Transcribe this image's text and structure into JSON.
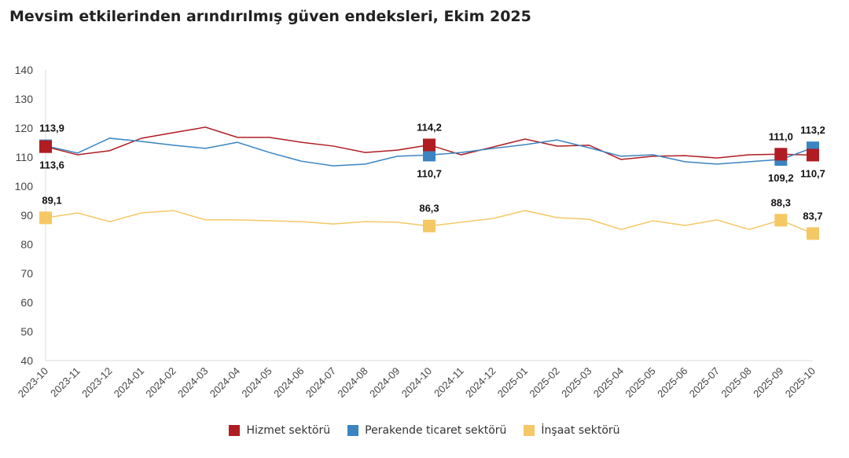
{
  "chart_data": {
    "type": "line",
    "title": "Mevsim etkilerinden arındırılmış güven endeksleri, Ekim 2025",
    "xlabel": "",
    "ylabel": "",
    "ylim": [
      40,
      140
    ],
    "yticks": [
      40,
      50,
      60,
      70,
      80,
      90,
      100,
      110,
      120,
      130,
      140
    ],
    "grid": false,
    "legend": "bottom",
    "categories": [
      "2023-10",
      "2023-11",
      "2023-12",
      "2024-01",
      "2024-02",
      "2024-03",
      "2024-04",
      "2024-05",
      "2024-06",
      "2024-07",
      "2024-08",
      "2024-09",
      "2024-10",
      "2024-11",
      "2024-12",
      "2025-01",
      "2025-02",
      "2025-03",
      "2025-04",
      "2025-05",
      "2025-06",
      "2025-07",
      "2025-08",
      "2025-09",
      "2025-10"
    ],
    "series": [
      {
        "name": "Hizmet sektörü",
        "color": "#b01c22",
        "values": [
          113.6,
          110.8,
          112.2,
          116.5,
          118.4,
          120.3,
          116.8,
          116.8,
          115.1,
          113.8,
          111.6,
          112.4,
          114.2,
          110.8,
          113.5,
          116.2,
          113.8,
          114.1,
          109.2,
          110.3,
          110.5,
          109.7,
          110.8,
          111.0,
          110.7
        ],
        "labels": [
          {
            "i": 0,
            "text": "113,6",
            "pos": "below"
          },
          {
            "i": 12,
            "text": "114,2",
            "pos": "above"
          },
          {
            "i": 23,
            "text": "111,0",
            "pos": "above"
          },
          {
            "i": 24,
            "text": "110,7",
            "pos": "below"
          }
        ]
      },
      {
        "name": "Perakende ticaret sektörü",
        "color": "#3a84c1",
        "values": [
          113.9,
          111.4,
          116.5,
          115.4,
          114.1,
          113.0,
          115.1,
          111.6,
          108.6,
          107.0,
          107.6,
          110.3,
          110.7,
          111.6,
          113.0,
          114.3,
          115.9,
          113.2,
          110.3,
          110.8,
          108.4,
          107.6,
          108.4,
          109.2,
          113.2
        ],
        "labels": [
          {
            "i": 0,
            "text": "113,9",
            "pos": "above"
          },
          {
            "i": 12,
            "text": "110,7",
            "pos": "below"
          },
          {
            "i": 23,
            "text": "109,2",
            "pos": "below"
          },
          {
            "i": 24,
            "text": "113,2",
            "pos": "above"
          }
        ]
      },
      {
        "name": "İnşaat sektörü",
        "color": "#f5c866",
        "values": [
          89.1,
          90.8,
          87.8,
          90.8,
          91.6,
          88.4,
          88.4,
          88.1,
          87.8,
          87.0,
          87.8,
          87.6,
          86.3,
          87.6,
          88.9,
          91.6,
          89.2,
          88.6,
          85.1,
          88.1,
          86.5,
          88.4,
          85.1,
          88.3,
          83.7
        ],
        "labels": [
          {
            "i": 0,
            "text": "89,1",
            "pos": "above"
          },
          {
            "i": 12,
            "text": "86,3",
            "pos": "above"
          },
          {
            "i": 23,
            "text": "88,3",
            "pos": "above"
          },
          {
            "i": 24,
            "text": "83,7",
            "pos": "above"
          }
        ]
      }
    ],
    "markers_at": [
      0,
      12,
      23,
      24
    ]
  }
}
